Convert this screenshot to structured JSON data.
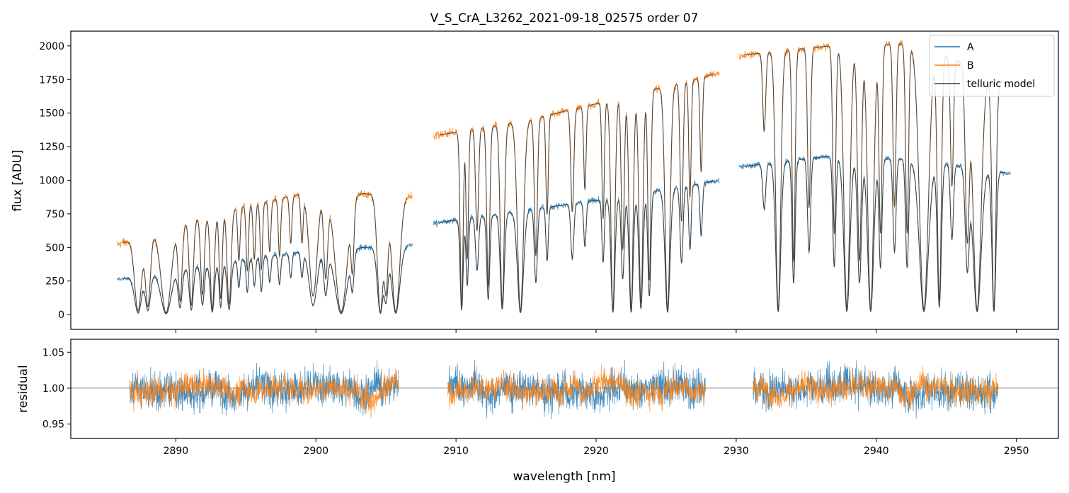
{
  "chart_data": {
    "type": "line",
    "title": "V_S_CrA_L3262_2021-09-18_02575  order 07",
    "xlabel": "wavelength [nm]",
    "xlim": [
      2882.5,
      2953
    ],
    "xticks": [
      2890,
      2900,
      2910,
      2920,
      2930,
      2940,
      2950
    ],
    "panels": {
      "flux": {
        "ylabel": "flux [ADU]",
        "ylim": [
          -110,
          2110
        ],
        "yticks": [
          0,
          250,
          500,
          750,
          1000,
          1250,
          1500,
          1750,
          2000
        ]
      },
      "residual": {
        "ylabel": "residual",
        "ylim": [
          0.93,
          1.068
        ],
        "yticks": [
          0.95,
          1.0,
          1.05
        ],
        "ytick_labels": [
          "0.95",
          "1.00",
          "1.05"
        ],
        "reference_line": 1.0
      }
    },
    "legend": {
      "position": "top-right",
      "entries": [
        {
          "label": "A",
          "color": "#1f77b4"
        },
        {
          "label": "B",
          "color": "#ff7f0e"
        },
        {
          "label": "telluric model",
          "color": "#3a3a3a"
        }
      ]
    },
    "segments": [
      {
        "x0": 2885.8,
        "x1": 2906.9,
        "a": [
          260,
          380,
          480,
          520
        ],
        "b": [
          520,
          760,
          920,
          880
        ]
      },
      {
        "x0": 2908.4,
        "x1": 2928.8,
        "a": [
          680,
          780,
          880,
          1000
        ],
        "b": [
          1330,
          1450,
          1620,
          1800
        ]
      },
      {
        "x0": 2930.2,
        "x1": 2949.6,
        "a": [
          1100,
          1180,
          1150,
          1050
        ],
        "b": [
          1930,
          2000,
          2020,
          1700
        ]
      }
    ],
    "absorption_lines": [
      {
        "x": 2887.3,
        "d": 0.95,
        "w": 0.35
      },
      {
        "x": 2888.0,
        "d": 0.9,
        "w": 0.25
      },
      {
        "x": 2889.3,
        "d": 0.98,
        "w": 0.5
      },
      {
        "x": 2890.3,
        "d": 0.85,
        "w": 0.2
      },
      {
        "x": 2891.1,
        "d": 0.9,
        "w": 0.2
      },
      {
        "x": 2891.9,
        "d": 0.8,
        "w": 0.18
      },
      {
        "x": 2892.6,
        "d": 0.95,
        "w": 0.2
      },
      {
        "x": 2893.2,
        "d": 0.85,
        "w": 0.15
      },
      {
        "x": 2893.8,
        "d": 0.9,
        "w": 0.2
      },
      {
        "x": 2894.5,
        "d": 0.5,
        "w": 0.12
      },
      {
        "x": 2895.1,
        "d": 0.6,
        "w": 0.12
      },
      {
        "x": 2895.6,
        "d": 0.5,
        "w": 0.12
      },
      {
        "x": 2896.1,
        "d": 0.6,
        "w": 0.12
      },
      {
        "x": 2896.7,
        "d": 0.45,
        "w": 0.12
      },
      {
        "x": 2897.4,
        "d": 0.5,
        "w": 0.12
      },
      {
        "x": 2898.2,
        "d": 0.4,
        "w": 0.12
      },
      {
        "x": 2899.0,
        "d": 0.4,
        "w": 0.12
      },
      {
        "x": 2899.8,
        "d": 0.85,
        "w": 0.4
      },
      {
        "x": 2900.7,
        "d": 0.7,
        "w": 0.2
      },
      {
        "x": 2901.8,
        "d": 0.98,
        "w": 0.6
      },
      {
        "x": 2902.6,
        "d": 0.6,
        "w": 0.15
      },
      {
        "x": 2904.6,
        "d": 0.98,
        "w": 0.3
      },
      {
        "x": 2905.0,
        "d": 0.8,
        "w": 0.2
      },
      {
        "x": 2905.7,
        "d": 0.98,
        "w": 0.4
      },
      {
        "x": 2910.4,
        "d": 0.95,
        "w": 0.15
      },
      {
        "x": 2910.8,
        "d": 0.7,
        "w": 0.12
      },
      {
        "x": 2911.5,
        "d": 0.55,
        "w": 0.15
      },
      {
        "x": 2912.3,
        "d": 0.85,
        "w": 0.15
      },
      {
        "x": 2913.3,
        "d": 0.95,
        "w": 0.2
      },
      {
        "x": 2914.6,
        "d": 0.98,
        "w": 0.3
      },
      {
        "x": 2915.7,
        "d": 0.7,
        "w": 0.15
      },
      {
        "x": 2916.5,
        "d": 0.5,
        "w": 0.12
      },
      {
        "x": 2918.3,
        "d": 0.5,
        "w": 0.15
      },
      {
        "x": 2919.2,
        "d": 0.4,
        "w": 0.12
      },
      {
        "x": 2920.5,
        "d": 0.55,
        "w": 0.12
      },
      {
        "x": 2921.2,
        "d": 0.98,
        "w": 0.2
      },
      {
        "x": 2921.9,
        "d": 0.7,
        "w": 0.15
      },
      {
        "x": 2922.5,
        "d": 0.98,
        "w": 0.2
      },
      {
        "x": 2923.2,
        "d": 0.95,
        "w": 0.2
      },
      {
        "x": 2923.8,
        "d": 0.85,
        "w": 0.15
      },
      {
        "x": 2925.1,
        "d": 0.98,
        "w": 0.25
      },
      {
        "x": 2926.1,
        "d": 0.6,
        "w": 0.15
      },
      {
        "x": 2926.7,
        "d": 0.5,
        "w": 0.12
      },
      {
        "x": 2927.5,
        "d": 0.4,
        "w": 0.12
      },
      {
        "x": 2932.0,
        "d": 0.3,
        "w": 0.15
      },
      {
        "x": 2933.0,
        "d": 0.98,
        "w": 0.25
      },
      {
        "x": 2934.1,
        "d": 0.8,
        "w": 0.15
      },
      {
        "x": 2935.2,
        "d": 0.6,
        "w": 0.15
      },
      {
        "x": 2937.0,
        "d": 0.7,
        "w": 0.15
      },
      {
        "x": 2937.9,
        "d": 0.98,
        "w": 0.3
      },
      {
        "x": 2938.8,
        "d": 0.8,
        "w": 0.2
      },
      {
        "x": 2939.6,
        "d": 0.98,
        "w": 0.3
      },
      {
        "x": 2940.3,
        "d": 0.7,
        "w": 0.15
      },
      {
        "x": 2941.3,
        "d": 0.6,
        "w": 0.15
      },
      {
        "x": 2942.2,
        "d": 0.7,
        "w": 0.15
      },
      {
        "x": 2943.4,
        "d": 0.98,
        "w": 0.45
      },
      {
        "x": 2944.5,
        "d": 0.95,
        "w": 0.2
      },
      {
        "x": 2945.4,
        "d": 0.5,
        "w": 0.15
      },
      {
        "x": 2946.5,
        "d": 0.7,
        "w": 0.2
      },
      {
        "x": 2947.2,
        "d": 0.98,
        "w": 0.4
      },
      {
        "x": 2948.4,
        "d": 0.98,
        "w": 0.2
      }
    ],
    "residual_ranges": [
      {
        "x0": 2886.7,
        "x1": 2905.9
      },
      {
        "x0": 2909.4,
        "x1": 2927.8
      },
      {
        "x0": 2931.2,
        "x1": 2948.7
      }
    ]
  }
}
